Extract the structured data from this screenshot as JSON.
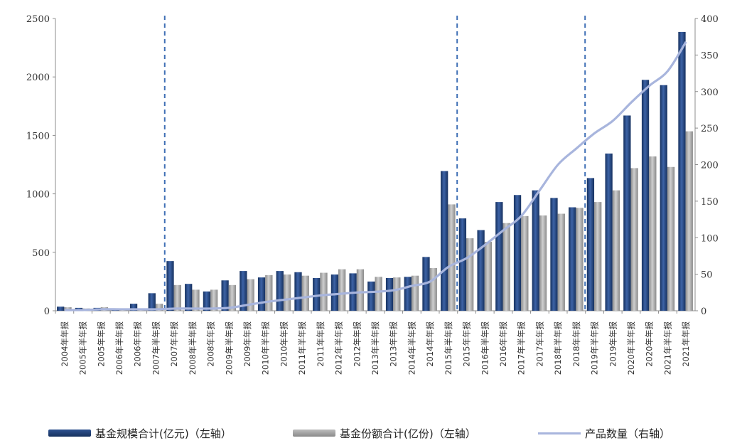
{
  "chart_data": {
    "type": "bar",
    "categories": [
      "2004年年报",
      "2005年半年报",
      "2005年年报",
      "2006年半年报",
      "2006年年报",
      "2007年半年报",
      "2007年年报",
      "2008年半年报",
      "2008年年报",
      "2009年半年报",
      "2009年年报",
      "2010年半年报",
      "2010年年报",
      "2011年半年报",
      "2011年年报",
      "2012年半年报",
      "2012年年报",
      "2013年半年报",
      "2013年年报",
      "2014年半年报",
      "2014年年报",
      "2015年半年报",
      "2015年年报",
      "2016年半年报",
      "2016年年报",
      "2017年半年报",
      "2017年年报",
      "2018年半年报",
      "2018年年报",
      "2019年半年报",
      "2019年年报",
      "2020年半年报",
      "2020年年报",
      "2021年半年报",
      "2021年年报"
    ],
    "series": [
      {
        "name": "基金规模合计(亿元)（左轴）",
        "type": "bar",
        "axis": "left",
        "color": "#1f3f7a",
        "values": [
          35,
          25,
          25,
          15,
          60,
          150,
          425,
          230,
          165,
          260,
          340,
          285,
          340,
          330,
          280,
          310,
          320,
          250,
          280,
          290,
          460,
          1195,
          790,
          690,
          930,
          990,
          1030,
          965,
          885,
          1135,
          1345,
          1670,
          1975,
          1930,
          2385
        ]
      },
      {
        "name": "基金份额合计(亿份)（左轴）",
        "type": "bar",
        "axis": "left",
        "color": "#a6a6a6",
        "values": [
          30,
          20,
          30,
          15,
          20,
          60,
          220,
          180,
          180,
          220,
          270,
          305,
          310,
          300,
          325,
          355,
          355,
          290,
          285,
          300,
          365,
          910,
          620,
          590,
          750,
          810,
          815,
          830,
          880,
          930,
          1030,
          1220,
          1320,
          1230,
          1535
        ]
      },
      {
        "name": "产品数量（右轴）",
        "type": "line",
        "axis": "right",
        "color": "#a8b5dd",
        "values": [
          1,
          1,
          2,
          2,
          2,
          2,
          3,
          3,
          3,
          4,
          8,
          12,
          15,
          18,
          21,
          23,
          25,
          26,
          28,
          34,
          40,
          60,
          72,
          90,
          110,
          130,
          165,
          200,
          222,
          243,
          260,
          285,
          308,
          328,
          368
        ]
      }
    ],
    "ylim": [
      0,
      2500
    ],
    "y2lim": [
      0,
      400
    ],
    "yticks": [
      0,
      500,
      1000,
      1500,
      2000,
      2500
    ],
    "y2ticks": [
      0,
      50,
      100,
      150,
      200,
      250,
      300,
      350,
      400
    ],
    "dividers_after_categories": [
      "2007年半年报",
      "2015年半年报",
      "2018年年报"
    ],
    "legend_position": "bottom",
    "grid": false
  }
}
